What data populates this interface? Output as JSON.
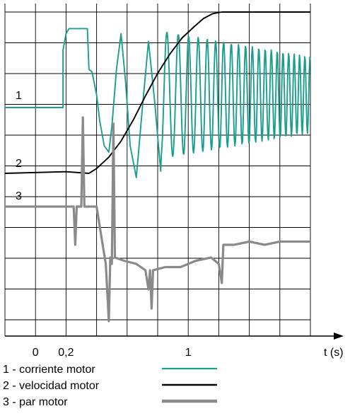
{
  "chart_data": {
    "type": "line",
    "x_unit_label": "t (s)",
    "x_ticks": [
      {
        "t": 0,
        "label": "0"
      },
      {
        "t": 0.2,
        "label": "0,2"
      },
      {
        "t": 1,
        "label": "1"
      }
    ],
    "x_range": [
      -0.2,
      1.8
    ],
    "grid": true,
    "colors": {
      "current": "#1a9e8e",
      "speed": "#000000",
      "torque": "#8a8a8a"
    },
    "series": [
      {
        "name": "1 - corriente motor",
        "trace_label": "1",
        "color": "#1a9e8e",
        "points": [
          [
            -0.2,
            0.0
          ],
          [
            0.18,
            0.0
          ],
          [
            0.18,
            0.45
          ],
          [
            0.2,
            0.58
          ],
          [
            0.22,
            0.62
          ],
          [
            0.34,
            0.62
          ],
          [
            0.35,
            0.3
          ],
          [
            0.37,
            0.28
          ],
          [
            0.4,
            0.1
          ],
          [
            0.42,
            -0.1
          ],
          [
            0.45,
            -0.3
          ],
          [
            0.48,
            -0.35
          ],
          [
            0.5,
            -0.15
          ],
          [
            0.53,
            0.3
          ],
          [
            0.56,
            0.58
          ],
          [
            0.59,
            0.2
          ],
          [
            0.62,
            -0.3
          ],
          [
            0.66,
            -0.55
          ],
          [
            0.7,
            0.0
          ],
          [
            0.74,
            0.52
          ],
          [
            0.78,
            0.05
          ],
          [
            0.82,
            -0.5
          ]
        ],
        "oscillation": {
          "t_start": 0.82,
          "t_end": 1.8,
          "mean": 0.1,
          "amplitude_start": 0.5,
          "amplitude_end": 0.3
        }
      },
      {
        "name": "2 - velocidad motor",
        "trace_label": "2",
        "color": "#000000",
        "points": [
          [
            -0.2,
            0.0
          ],
          [
            0.2,
            0.01
          ],
          [
            0.35,
            0.0
          ],
          [
            0.4,
            0.03
          ],
          [
            0.48,
            0.1
          ],
          [
            0.56,
            0.2
          ],
          [
            0.64,
            0.33
          ],
          [
            0.72,
            0.48
          ],
          [
            0.8,
            0.62
          ],
          [
            0.88,
            0.74
          ],
          [
            0.96,
            0.84
          ],
          [
            1.04,
            0.91
          ],
          [
            1.1,
            0.96
          ],
          [
            1.16,
            0.99
          ],
          [
            1.22,
            1.0
          ],
          [
            1.8,
            1.0
          ]
        ]
      },
      {
        "name": "3 - par motor",
        "trace_label": "3",
        "color": "#8a8a8a",
        "points": [
          [
            -0.2,
            0.0
          ],
          [
            0.25,
            0.0
          ],
          [
            0.26,
            -0.6
          ],
          [
            0.27,
            0.0
          ],
          [
            0.3,
            0.0
          ],
          [
            0.31,
            1.4
          ],
          [
            0.32,
            0.0
          ],
          [
            0.4,
            0.0
          ],
          [
            0.44,
            -0.6
          ],
          [
            0.46,
            -0.9
          ],
          [
            0.48,
            -1.8
          ],
          [
            0.49,
            -0.8
          ],
          [
            0.5,
            -0.9
          ],
          [
            0.51,
            1.3
          ],
          [
            0.52,
            -0.8
          ],
          [
            0.58,
            -0.85
          ],
          [
            0.66,
            -0.9
          ],
          [
            0.72,
            -1.0
          ],
          [
            0.74,
            -1.3
          ],
          [
            0.75,
            -1.0
          ],
          [
            0.76,
            -1.6
          ],
          [
            0.77,
            -1.0
          ],
          [
            0.85,
            -0.95
          ],
          [
            0.95,
            -0.95
          ],
          [
            1.05,
            -0.85
          ],
          [
            1.15,
            -0.8
          ],
          [
            1.2,
            -0.9
          ],
          [
            1.22,
            -1.2
          ],
          [
            1.23,
            -0.6
          ],
          [
            1.3,
            -0.6
          ],
          [
            1.4,
            -0.55
          ],
          [
            1.5,
            -0.6
          ],
          [
            1.6,
            -0.55
          ],
          [
            1.8,
            -0.55
          ]
        ]
      }
    ],
    "legend": [
      {
        "text": "1 - corriente motor",
        "color": "#1a9e8e"
      },
      {
        "text": "2 - velocidad motor",
        "color": "#000000"
      },
      {
        "text": "3 - par motor",
        "color": "#8a8a8a"
      }
    ]
  }
}
